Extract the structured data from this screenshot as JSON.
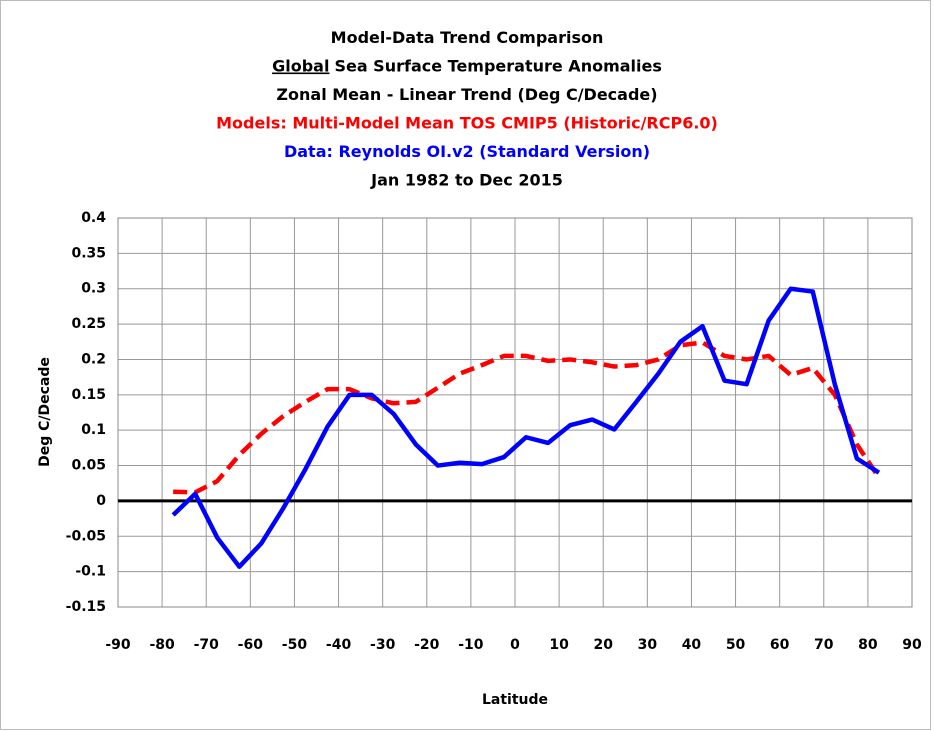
{
  "chart_data": {
    "type": "line",
    "title_lines": [
      {
        "text": "Model-Data Trend Comparison",
        "color": "#000000"
      },
      {
        "underlined": "Global",
        "text": "Sea Surface Temperature Anomalies",
        "color": "#000000"
      },
      {
        "text": "Zonal Mean - Linear Trend (Deg C/Decade)",
        "color": "#000000"
      },
      {
        "text": "Models: Multi-Model Mean TOS CMIP5 (Historic/RCP6.0)",
        "color": "#ff0000"
      },
      {
        "text": "Data: Reynolds OI.v2 (Standard Version)",
        "color": "#0000ff"
      },
      {
        "text": "Jan 1982 to Dec 2015",
        "color": "#000000"
      }
    ],
    "x_label": "Latitude",
    "y_label": "Deg C/Decade",
    "x": [
      -77.5,
      -72.5,
      -67.5,
      -62.5,
      -57.5,
      -52.5,
      -47.5,
      -42.5,
      -37.5,
      -32.5,
      -27.5,
      -22.5,
      -17.5,
      -12.5,
      -7.5,
      -2.5,
      2.5,
      7.5,
      12.5,
      17.5,
      22.5,
      27.5,
      32.5,
      37.5,
      42.5,
      47.5,
      52.5,
      57.5,
      62.5,
      67.5,
      72.5,
      77.5,
      82.5
    ],
    "series": [
      {
        "color": "#ff0000",
        "dashed": true,
        "values": [
          0.013,
          0.012,
          0.028,
          0.065,
          0.095,
          0.12,
          0.14,
          0.158,
          0.158,
          0.145,
          0.138,
          0.14,
          0.16,
          0.18,
          0.192,
          0.205,
          0.205,
          0.198,
          0.2,
          0.196,
          0.19,
          0.192,
          0.2,
          0.22,
          0.224,
          0.205,
          0.2,
          0.205,
          0.178,
          0.188,
          0.15,
          0.08,
          0.033
        ]
      },
      {
        "color": "#0000ff",
        "dashed": false,
        "values": [
          -0.02,
          0.01,
          -0.052,
          -0.093,
          -0.06,
          -0.01,
          0.045,
          0.105,
          0.15,
          0.15,
          0.123,
          0.08,
          0.05,
          0.054,
          0.052,
          0.062,
          0.09,
          0.082,
          0.107,
          0.115,
          0.101,
          0.14,
          0.18,
          0.225,
          0.247,
          0.17,
          0.165,
          0.255,
          0.3,
          0.296,
          0.165,
          0.06,
          0.04
        ]
      }
    ],
    "xlim": [
      -90,
      90
    ],
    "xticks": [
      -90,
      -80,
      -70,
      -60,
      -50,
      -40,
      -30,
      -20,
      -10,
      0,
      10,
      20,
      30,
      40,
      50,
      60,
      70,
      80,
      90
    ],
    "ylim": [
      -0.15,
      0.4
    ],
    "yticks": [
      -0.15,
      -0.1,
      -0.05,
      0,
      0.05,
      0.1,
      0.15,
      0.2,
      0.25,
      0.3,
      0.35,
      0.4
    ],
    "grid": true
  }
}
